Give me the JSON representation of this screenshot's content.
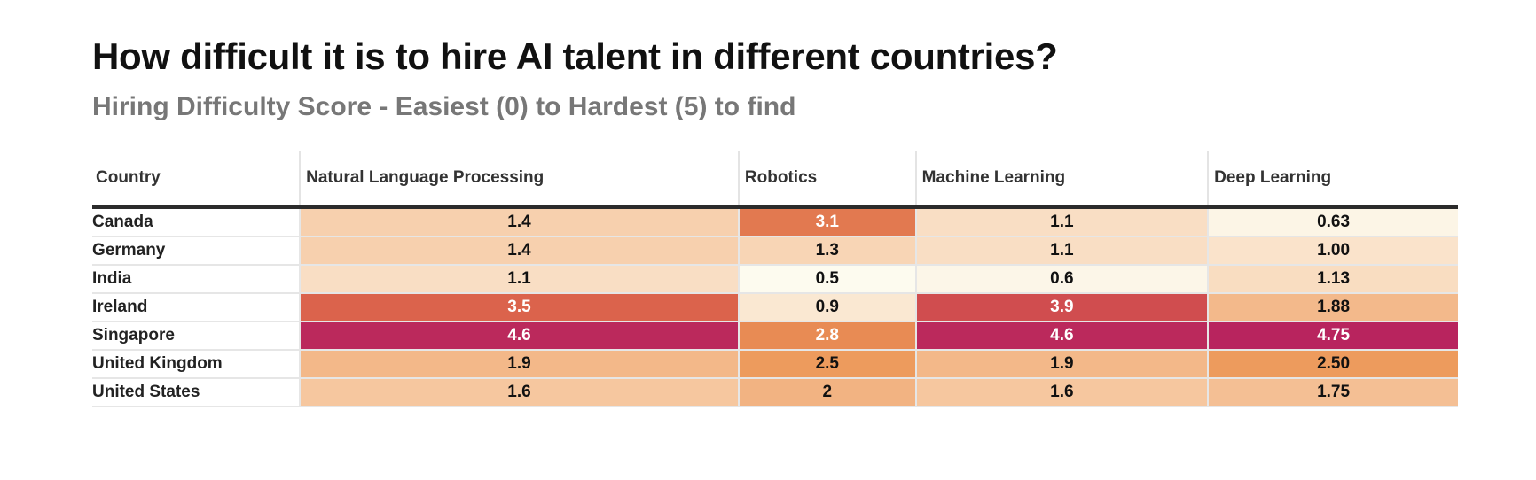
{
  "title": "How difficult it is to hire AI talent in different countries?",
  "subtitle": "Hiring Difficulty Score - Easiest (0) to Hardest (5) to find",
  "chart_data": {
    "type": "heatmap",
    "title": "How difficult it is to hire AI talent in different countries?",
    "subtitle": "Hiring Difficulty Score - Easiest (0) to Hardest (5) to find",
    "row_header": "Country",
    "columns": [
      "Natural Language Processing",
      "Robotics",
      "Machine Learning",
      "Deep Learning"
    ],
    "rows": [
      {
        "country": "Canada",
        "values": [
          "1.4",
          "3.1",
          "1.1",
          "0.63"
        ]
      },
      {
        "country": "Germany",
        "values": [
          "1.4",
          "1.3",
          "1.1",
          "1.00"
        ]
      },
      {
        "country": "India",
        "values": [
          "1.1",
          "0.5",
          "0.6",
          "1.13"
        ]
      },
      {
        "country": "Ireland",
        "values": [
          "3.5",
          "0.9",
          "3.9",
          "1.88"
        ]
      },
      {
        "country": "Singapore",
        "values": [
          "4.6",
          "2.8",
          "4.6",
          "4.75"
        ]
      },
      {
        "country": "United Kingdom",
        "values": [
          "1.9",
          "2.5",
          "1.9",
          "2.50"
        ]
      },
      {
        "country": "United States",
        "values": [
          "1.6",
          "2",
          "1.6",
          "1.75"
        ]
      }
    ],
    "color_scale": [
      "#fdfbef",
      "#f6c9a3",
      "#ec9656",
      "#d85a4a",
      "#b8245e"
    ]
  }
}
